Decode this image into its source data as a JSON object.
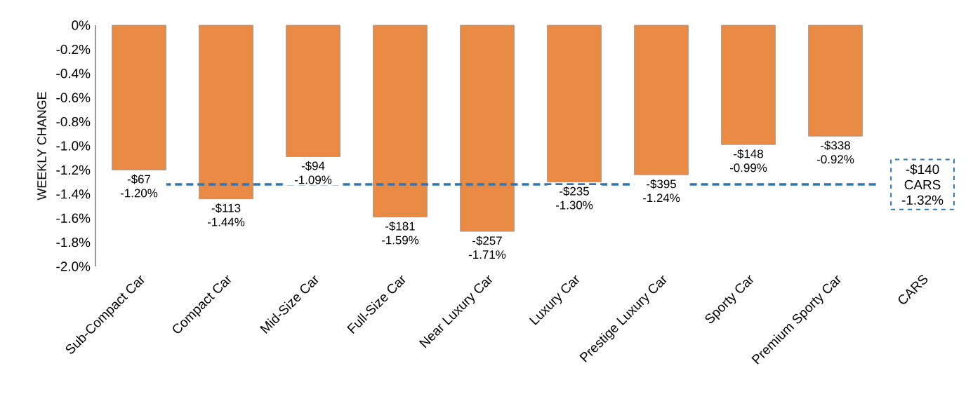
{
  "chart_data": {
    "type": "bar",
    "ylabel": "WEEKLY CHANGE",
    "categories": [
      "Sub-Compact Car",
      "Compact Car",
      "Mid-Size Car",
      "Full-Size Car",
      "Near Luxury Car",
      "Luxury Car",
      "Prestige Luxury Car",
      "Sporty Car",
      "Premium Sporty Car",
      "CARS"
    ],
    "values": [
      -1.2,
      -1.44,
      -1.09,
      -1.59,
      -1.71,
      -1.3,
      -1.24,
      -0.99,
      -0.92,
      null
    ],
    "value_labels": [
      "-$67 -1.20%",
      "-$113 -1.44%",
      "-$94 -1.09%",
      "-$181 -1.59%",
      "-$257 -1.71%",
      "-$235 -1.30%",
      "-$395 -1.24%",
      "-$148 -0.99%",
      "-$338 -0.92%",
      null
    ],
    "color": "#e98a45",
    "ylim": [
      -2.0,
      0
    ],
    "yticks": [
      {
        "value": 0,
        "label": "0%"
      },
      {
        "value": -0.2,
        "label": "-0.2%"
      },
      {
        "value": -0.4,
        "label": "-0.4%"
      },
      {
        "value": -0.6,
        "label": "-0.6%"
      },
      {
        "value": -0.8,
        "label": "-0.8%"
      },
      {
        "value": -1.0,
        "label": "-1.0%"
      },
      {
        "value": -1.2,
        "label": "-1.2%"
      },
      {
        "value": -1.4,
        "label": "-1.4%"
      },
      {
        "value": -1.6,
        "label": "-1.6%"
      },
      {
        "value": -1.8,
        "label": "-1.8%"
      },
      {
        "value": -2.0,
        "label": "-2.0%"
      }
    ],
    "ref_lines": [
      {
        "axis": "y",
        "value": -1.32,
        "color": "#2e75b6",
        "line_style": "dashed"
      }
    ],
    "annotations": [
      "-$140 CARS -1.32%"
    ]
  }
}
